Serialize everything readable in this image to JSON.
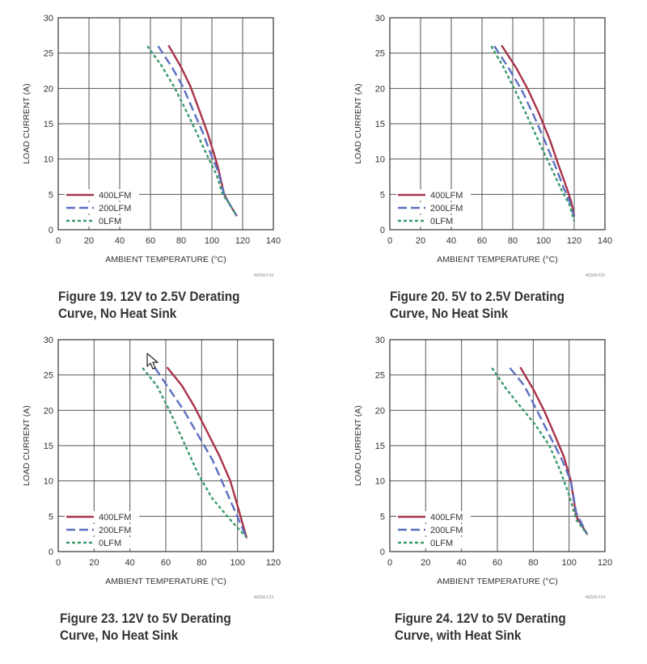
{
  "colors": {
    "400LFM": "#a8324a",
    "200LFM": "#5b6fc0",
    "0LFM": "#3a9a6a",
    "grid": "#555555"
  },
  "icons": {
    "cursor": "mouse-pointer-icon"
  },
  "chart_data": [
    {
      "id": "19",
      "type": "line",
      "caption_line1": "Figure 19. 12V to 2.5V Derating",
      "caption_line2": "Curve, No Heat Sink",
      "xlabel": "AMBIENT TEMPERATURE (°C)",
      "ylabel": "LOAD CURRENT (A)",
      "xlim": [
        0,
        140
      ],
      "ylim": [
        0,
        30
      ],
      "xticks": [
        0,
        20,
        40,
        60,
        80,
        100,
        120,
        140
      ],
      "yticks": [
        0,
        5,
        10,
        15,
        20,
        25,
        30
      ],
      "code": "4620A F19",
      "legend": [
        "400LFM",
        "200LFM",
        "0LFM"
      ],
      "series": [
        {
          "name": "400LFM",
          "x": [
            72,
            80,
            86,
            92,
            97,
            101,
            104,
            108,
            111,
            116
          ],
          "y": [
            26,
            23,
            20.3,
            16.8,
            13.8,
            11,
            8.8,
            5,
            3.8,
            2
          ]
        },
        {
          "name": "200LFM",
          "x": [
            65,
            74,
            81,
            88,
            94,
            100,
            104,
            108,
            111,
            116
          ],
          "y": [
            26,
            23,
            20.3,
            16.8,
            13.8,
            10.3,
            8.3,
            5,
            3.8,
            2
          ]
        },
        {
          "name": "0LFM",
          "x": [
            58,
            67,
            76,
            84,
            91,
            98,
            103,
            107,
            111,
            116
          ],
          "y": [
            26,
            23.3,
            20,
            16.5,
            13.3,
            10,
            7.8,
            5,
            3.8,
            2
          ]
        }
      ]
    },
    {
      "id": "20",
      "type": "line",
      "caption_line1": "Figure 20. 5V to 2.5V Derating",
      "caption_line2": "Curve, No Heat Sink",
      "xlabel": "AMBIENT TEMPERATURE (°C)",
      "ylabel": "LOAD CURRENT (A)",
      "xlim": [
        0,
        140
      ],
      "ylim": [
        0,
        30
      ],
      "xticks": [
        0,
        20,
        40,
        60,
        80,
        100,
        120,
        140
      ],
      "yticks": [
        0,
        5,
        10,
        15,
        20,
        25,
        30
      ],
      "code": "4620A F20",
      "legend": [
        "400LFM",
        "200LFM",
        "0LFM"
      ],
      "series": [
        {
          "name": "400LFM",
          "x": [
            73,
            82,
            90,
            97,
            104,
            110,
            115,
            118,
            120
          ],
          "y": [
            26,
            23,
            19.8,
            16.5,
            12.8,
            9,
            6,
            4,
            2
          ]
        },
        {
          "name": "200LFM",
          "x": [
            68,
            77,
            86,
            94,
            101,
            108,
            113,
            117,
            120
          ],
          "y": [
            26,
            23,
            19.7,
            16,
            12.5,
            8.8,
            6,
            4,
            1.8
          ]
        },
        {
          "name": "0LFM",
          "x": [
            66,
            74,
            82,
            90,
            98,
            106,
            112,
            117,
            120
          ],
          "y": [
            26,
            23,
            19.5,
            15.8,
            12,
            8.3,
            5.5,
            3.5,
            1.2
          ]
        }
      ]
    },
    {
      "id": "23",
      "type": "line",
      "caption_line1": "Figure 23. 12V to 5V Derating",
      "caption_line2": "Curve, No Heat Sink",
      "xlabel": "AMBIENT TEMPERATURE (°C)",
      "ylabel": "LOAD CURRENT (A)",
      "xlim": [
        0,
        120
      ],
      "ylim": [
        0,
        30
      ],
      "xticks": [
        0,
        20,
        40,
        60,
        80,
        100,
        120
      ],
      "yticks": [
        0,
        5,
        10,
        15,
        20,
        25,
        30
      ],
      "code": "4620A F23",
      "legend": [
        "400LFM",
        "200LFM",
        "0LFM"
      ],
      "series": [
        {
          "name": "400LFM",
          "x": [
            61,
            69,
            76,
            83,
            90,
            96,
            100,
            105
          ],
          "y": [
            26,
            23.5,
            20.5,
            17,
            13.5,
            10,
            6.5,
            2
          ]
        },
        {
          "name": "200LFM",
          "x": [
            54,
            62,
            70,
            78,
            86,
            93,
            99,
            105
          ],
          "y": [
            26,
            23,
            20,
            16.5,
            13,
            9,
            5.5,
            2
          ]
        },
        {
          "name": "0LFM",
          "x": [
            47,
            55,
            62,
            70,
            78,
            86,
            96,
            105
          ],
          "y": [
            26,
            23.5,
            20,
            15.5,
            11,
            7.5,
            4.5,
            2
          ]
        }
      ]
    },
    {
      "id": "24",
      "type": "line",
      "caption_line1": "Figure 24. 12V to 5V Derating",
      "caption_line2": "Curve, with Heat Sink",
      "xlabel": "AMBIENT TEMPERATURE (°C)",
      "ylabel": "LOAD CURRENT (A)",
      "xlim": [
        0,
        120
      ],
      "ylim": [
        0,
        30
      ],
      "xticks": [
        0,
        20,
        40,
        60,
        80,
        100,
        120
      ],
      "yticks": [
        0,
        5,
        10,
        15,
        20,
        25,
        30
      ],
      "code": "4620A F24",
      "legend": [
        "400LFM",
        "200LFM",
        "0LFM"
      ],
      "series": [
        {
          "name": "400LFM",
          "x": [
            73,
            80,
            86,
            92,
            97,
            101,
            104,
            110
          ],
          "y": [
            26,
            23,
            20,
            16.5,
            13.5,
            10,
            5,
            2.5
          ]
        },
        {
          "name": "200LFM",
          "x": [
            67,
            75,
            82,
            89,
            96,
            101,
            104,
            110
          ],
          "y": [
            26,
            23.5,
            20,
            16.5,
            13,
            10,
            5.5,
            2.5
          ]
        },
        {
          "name": "0LFM",
          "x": [
            57,
            65,
            73,
            81,
            89,
            95,
            100,
            104,
            110
          ],
          "y": [
            26,
            23,
            20.5,
            18,
            15,
            11.5,
            8,
            4.5,
            2.5
          ]
        }
      ]
    }
  ]
}
